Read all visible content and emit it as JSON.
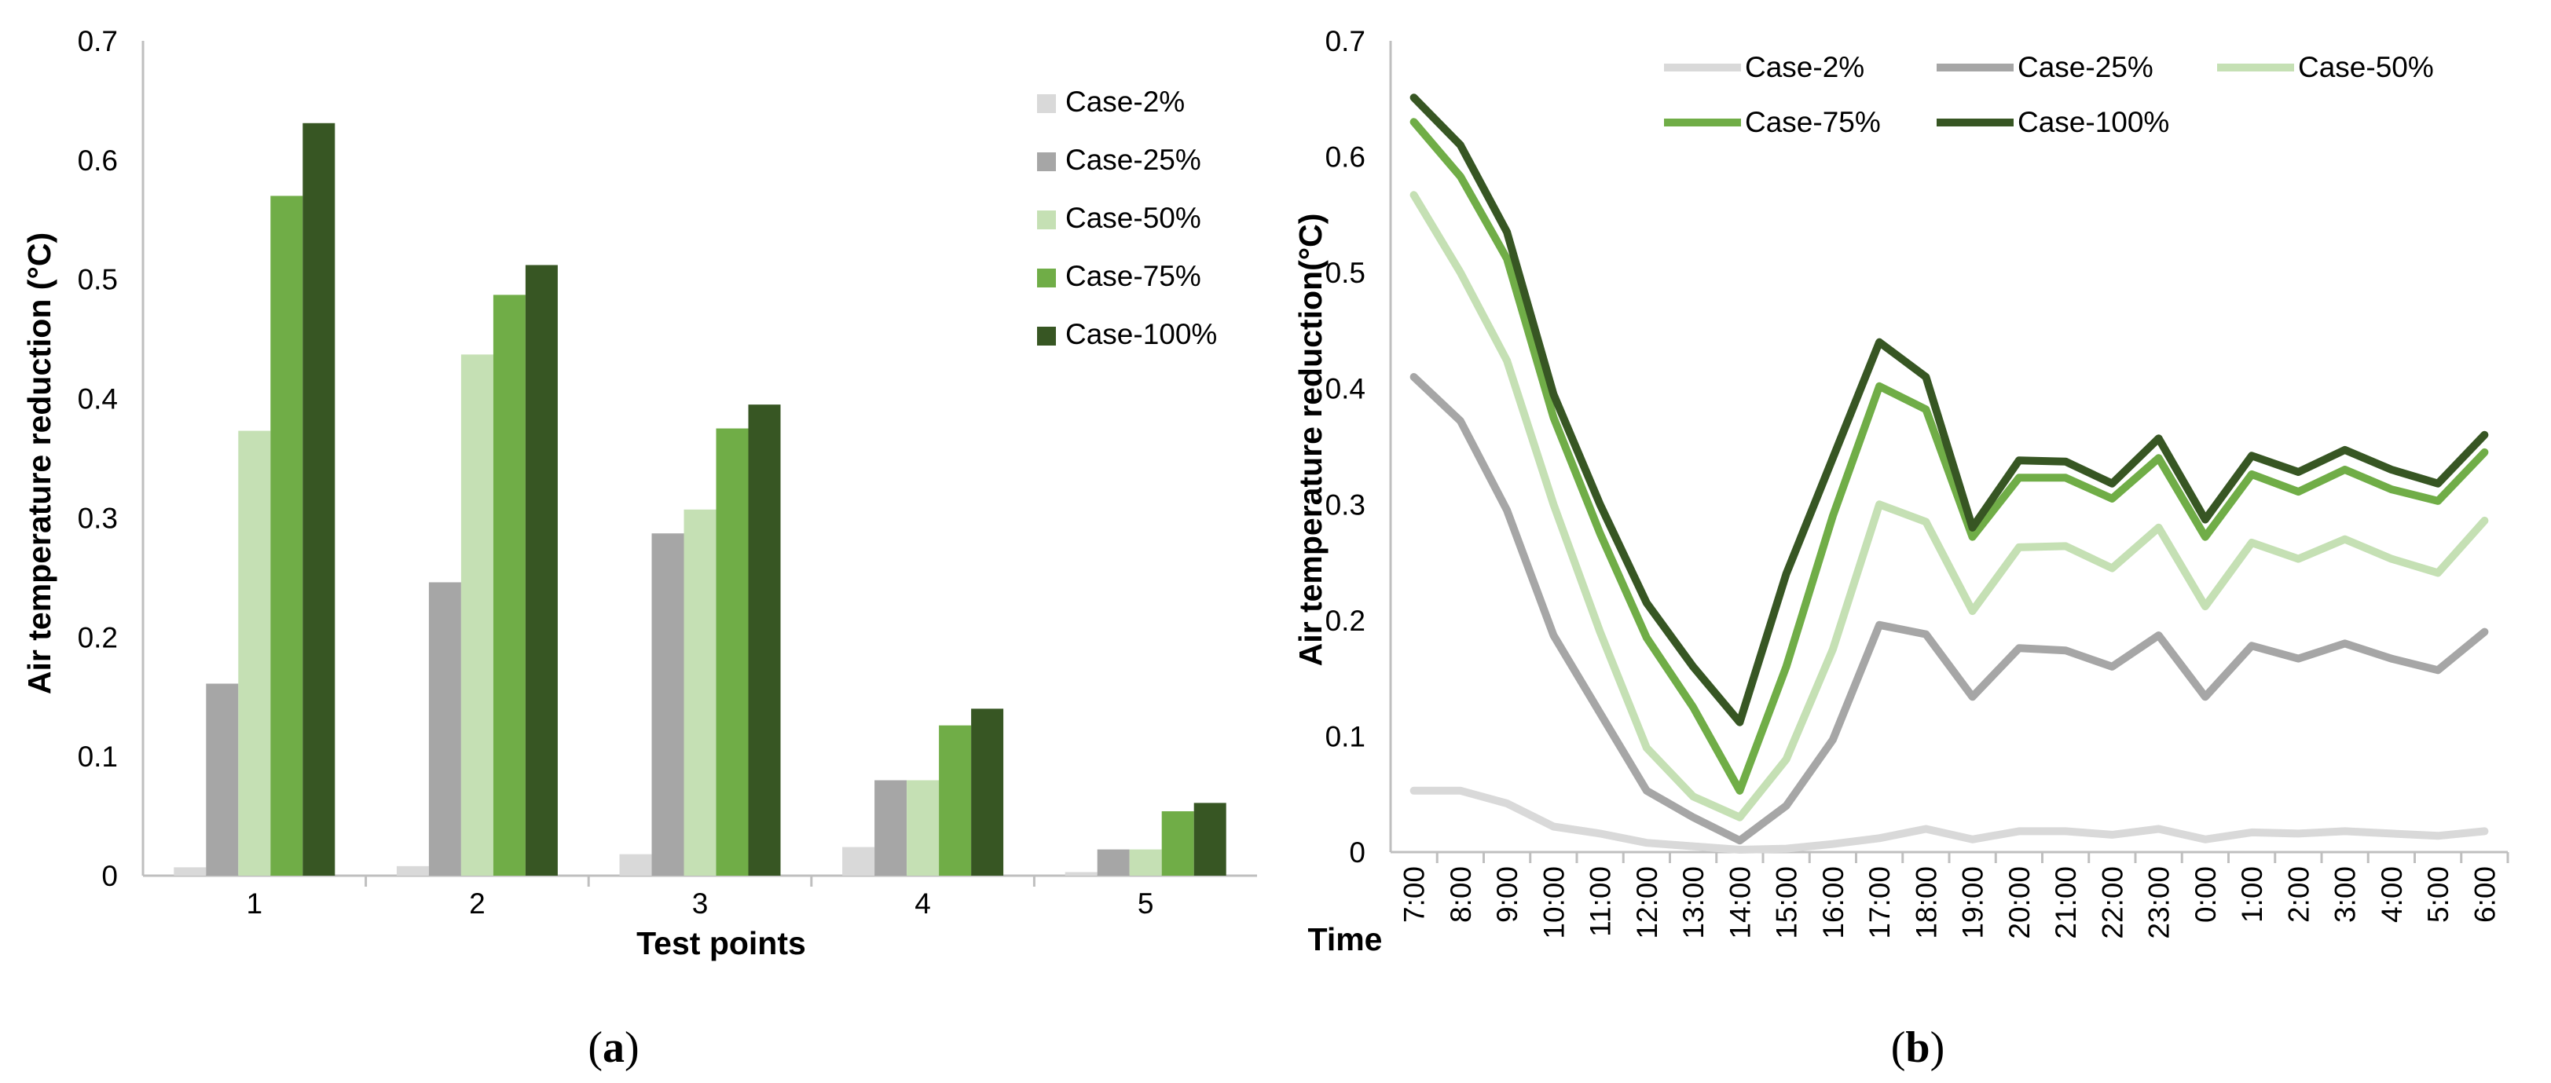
{
  "chart_data": [
    {
      "type": "bar",
      "panel_label": "a",
      "xlabel": "Test points",
      "ylabel": "Air temperature reduction (°C)",
      "ylim": [
        0,
        0.7
      ],
      "yticks": [
        "0",
        "0.1",
        "0.2",
        "0.3",
        "0.4",
        "0.5",
        "0.6",
        "0.7"
      ],
      "legend_position": "top-right",
      "categories": [
        "1",
        "2",
        "3",
        "4",
        "5"
      ],
      "series": [
        {
          "name": "Case-2%",
          "color": "#d9d9d9",
          "values": [
            0.007,
            0.008,
            0.018,
            0.024,
            0.003
          ]
        },
        {
          "name": "Case-25%",
          "color": "#a6a6a6",
          "values": [
            0.161,
            0.246,
            0.287,
            0.08,
            0.022
          ]
        },
        {
          "name": "Case-50%",
          "color": "#c5e0b4",
          "values": [
            0.373,
            0.437,
            0.307,
            0.08,
            0.022
          ]
        },
        {
          "name": "Case-75%",
          "color": "#70ad47",
          "values": [
            0.57,
            0.487,
            0.375,
            0.126,
            0.054
          ]
        },
        {
          "name": "Case-100%",
          "color": "#375623",
          "values": [
            0.631,
            0.512,
            0.395,
            0.14,
            0.061
          ]
        }
      ]
    },
    {
      "type": "line",
      "panel_label": "b",
      "xlabel": "Time",
      "ylabel": "Air temperature reduction(°C)",
      "ylim": [
        0,
        0.7
      ],
      "yticks": [
        "0",
        "0.1",
        "0.2",
        "0.3",
        "0.4",
        "0.5",
        "0.6",
        "0.7"
      ],
      "legend_position": "top",
      "x": [
        "7:00",
        "8:00",
        "9:00",
        "10:00",
        "11:00",
        "12:00",
        "13:00",
        "14:00",
        "15:00",
        "16:00",
        "17:00",
        "18:00",
        "19:00",
        "20:00",
        "21:00",
        "22:00",
        "23:00",
        "0:00",
        "1:00",
        "2:00",
        "3:00",
        "4:00",
        "5:00",
        "6:00"
      ],
      "series": [
        {
          "name": "Case-2%",
          "color": "#d9d9d9",
          "values": [
            0.053,
            0.053,
            0.042,
            0.022,
            0.016,
            0.008,
            0.005,
            0.002,
            0.003,
            0.007,
            0.012,
            0.02,
            0.011,
            0.018,
            0.018,
            0.015,
            0.02,
            0.011,
            0.017,
            0.016,
            0.018,
            0.016,
            0.014,
            0.018
          ]
        },
        {
          "name": "Case-25%",
          "color": "#a6a6a6",
          "values": [
            0.41,
            0.372,
            0.295,
            0.187,
            0.12,
            0.053,
            0.03,
            0.01,
            0.04,
            0.097,
            0.196,
            0.188,
            0.134,
            0.176,
            0.174,
            0.16,
            0.187,
            0.134,
            0.178,
            0.167,
            0.18,
            0.167,
            0.157,
            0.19
          ]
        },
        {
          "name": "Case-50%",
          "color": "#c5e0b4",
          "values": [
            0.567,
            0.5,
            0.424,
            0.3,
            0.19,
            0.09,
            0.048,
            0.03,
            0.08,
            0.175,
            0.3,
            0.285,
            0.208,
            0.263,
            0.264,
            0.245,
            0.28,
            0.212,
            0.267,
            0.253,
            0.27,
            0.253,
            0.241,
            0.286
          ]
        },
        {
          "name": "Case-75%",
          "color": "#70ad47",
          "values": [
            0.63,
            0.583,
            0.512,
            0.375,
            0.275,
            0.185,
            0.125,
            0.053,
            0.16,
            0.29,
            0.402,
            0.382,
            0.272,
            0.323,
            0.323,
            0.305,
            0.34,
            0.272,
            0.326,
            0.311,
            0.33,
            0.313,
            0.303,
            0.345
          ]
        },
        {
          "name": "Case-100%",
          "color": "#375623",
          "values": [
            0.651,
            0.61,
            0.535,
            0.395,
            0.3,
            0.215,
            0.16,
            0.112,
            0.24,
            0.34,
            0.44,
            0.41,
            0.28,
            0.338,
            0.337,
            0.318,
            0.357,
            0.287,
            0.342,
            0.328,
            0.347,
            0.33,
            0.318,
            0.36
          ]
        }
      ]
    }
  ]
}
